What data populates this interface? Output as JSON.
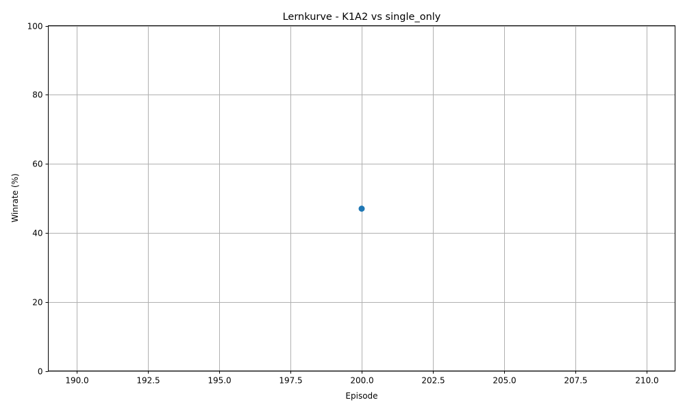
{
  "chart_data": {
    "type": "line",
    "title": "Lernkurve - K1A2 vs single_only",
    "xlabel": "Episode",
    "ylabel": "Winrate (%)",
    "xlim": [
      189,
      211
    ],
    "ylim": [
      0,
      100
    ],
    "xticks": [
      190.0,
      192.5,
      195.0,
      197.5,
      200.0,
      202.5,
      205.0,
      207.5,
      210.0
    ],
    "xtick_labels": [
      "190.0",
      "192.5",
      "195.0",
      "197.5",
      "200.0",
      "202.5",
      "205.0",
      "207.5",
      "210.0"
    ],
    "yticks": [
      0,
      20,
      40,
      60,
      80,
      100
    ],
    "ytick_labels": [
      "0",
      "20",
      "40",
      "60",
      "80",
      "100"
    ],
    "grid": true,
    "series": [
      {
        "color": "#1f77b4",
        "marker": "circle",
        "x": [
          200
        ],
        "y": [
          47
        ]
      }
    ]
  }
}
